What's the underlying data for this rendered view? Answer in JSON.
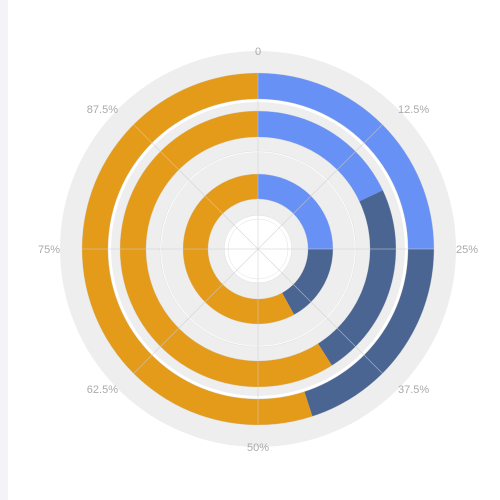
{
  "chart_data": {
    "type": "radial-stacked-bar",
    "angle_axis": {
      "tick_labels": [
        "0",
        "12.5%",
        "25%",
        "37.5%",
        "50%",
        "62.5%",
        "75%",
        "87.5%"
      ],
      "max": 100
    },
    "series": [
      {
        "color": "#6891f6",
        "values": [
          25,
          18,
          25
        ]
      },
      {
        "color": "#4a6591",
        "values": [
          17,
          23,
          20
        ]
      },
      {
        "color": "#e59b1a",
        "values": [
          58,
          59,
          55
        ]
      }
    ],
    "ring_background_color": "#eeeeee",
    "grid_color": "#cccccc"
  }
}
